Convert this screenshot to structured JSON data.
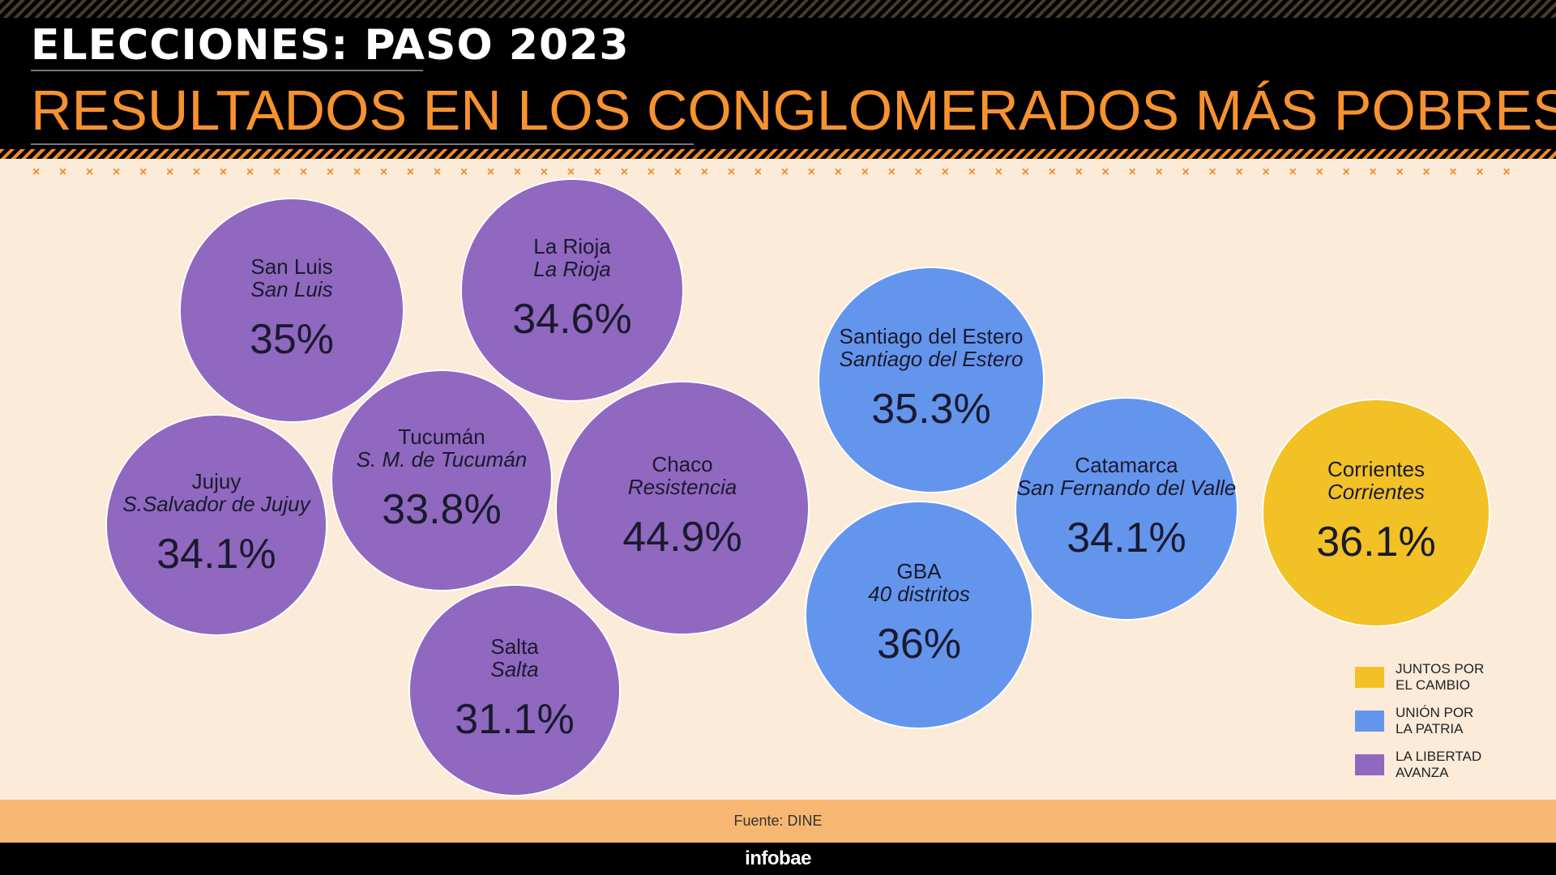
{
  "header": {
    "title_top": "ELECCIONES: PASO 2023",
    "title_main": "RESULTADOS EN LOS CONGLOMERADOS MÁS POBRES",
    "separator": "× × × × × × × × × × × × × × × × × × × × × × × × × × × × × × × × × × × × × × × × × × × × × × × × × × × × × × × × × × × × × × × × × × × × × × × × × × × × × × × × × × × × × × × × × × × × × × × × × × × × × ×"
  },
  "colors": {
    "juntos_por_el_cambio": "#f2c125",
    "union_por_la_patria": "#6495ed",
    "la_libertad_avanza": "#9068bf",
    "title_accent": "#f7922f",
    "background": "#fcebd9"
  },
  "chart_data": {
    "type": "bubble",
    "unit": "%",
    "points": [
      {
        "region": "San Luis",
        "city": "San Luis",
        "value": 35,
        "label": "35%",
        "party": "la_libertad_avanza"
      },
      {
        "region": "La Rioja",
        "city": "La Rioja",
        "value": 34.6,
        "label": "34.6%",
        "party": "la_libertad_avanza"
      },
      {
        "region": "Jujuy",
        "city": "S.Salvador de Jujuy",
        "value": 34.1,
        "label": "34.1%",
        "party": "la_libertad_avanza"
      },
      {
        "region": "Tucumán",
        "city": "S. M. de Tucumán",
        "value": 33.8,
        "label": "33.8%",
        "party": "la_libertad_avanza"
      },
      {
        "region": "Chaco",
        "city": "Resistencia",
        "value": 44.9,
        "label": "44.9%",
        "party": "la_libertad_avanza"
      },
      {
        "region": "Salta",
        "city": "Salta",
        "value": 31.1,
        "label": "31.1%",
        "party": "la_libertad_avanza"
      },
      {
        "region": "Santiago del Estero",
        "city": "Santiago del Estero",
        "value": 35.3,
        "label": "35.3%",
        "party": "union_por_la_patria"
      },
      {
        "region": "Catamarca",
        "city": "San Fernando del Valle",
        "value": 34.1,
        "label": "34.1%",
        "party": "union_por_la_patria"
      },
      {
        "region": "GBA",
        "city": "40 distritos",
        "value": 36,
        "label": "36%",
        "party": "union_por_la_patria"
      },
      {
        "region": "Corrientes",
        "city": "Corrientes",
        "value": 36.1,
        "label": "36.1%",
        "party": "juntos_por_el_cambio"
      }
    ],
    "legend": {
      "placement": "bottom-right",
      "items": [
        {
          "key": "juntos_por_el_cambio",
          "line1": "JUNTOS POR",
          "line2": "EL CAMBIO"
        },
        {
          "key": "union_por_la_patria",
          "line1": "UNIÓN POR",
          "line2": "LA PATRIA"
        },
        {
          "key": "la_libertad_avanza",
          "line1": "LA LIBERTAD",
          "line2": "AVANZA"
        }
      ]
    }
  },
  "footer": {
    "source": "Fuente: DINE",
    "brand": "infobae"
  }
}
